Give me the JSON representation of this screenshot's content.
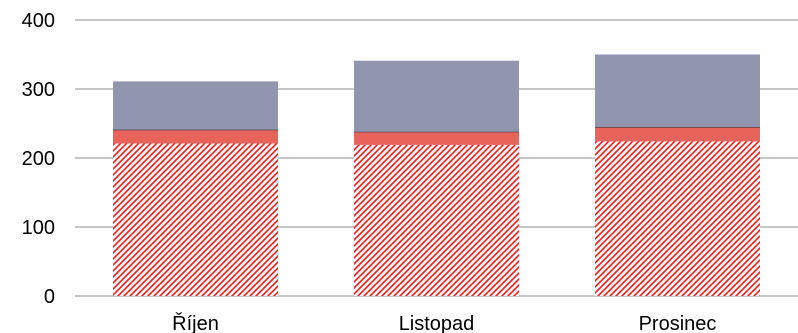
{
  "chart_data": {
    "type": "bar",
    "stacked": true,
    "categories": [
      "Říjen",
      "Listopad",
      "Prosinec"
    ],
    "series": [
      {
        "values": [
          221,
          219,
          224
        ],
        "color": "#ff0000",
        "pattern": "diagonal-hatch"
      },
      {
        "values": [
          20,
          19,
          21
        ],
        "color": "#e8635a",
        "pattern": "solid"
      },
      {
        "values": [
          70,
          103,
          105
        ],
        "color": "#9196ae",
        "pattern": "solid"
      }
    ],
    "separator_color": "#1f2d3a",
    "ylim": [
      0,
      400
    ],
    "yticks": [
      0,
      100,
      200,
      300,
      400
    ],
    "grid": true,
    "legend": "none",
    "title": "",
    "xlabel": "",
    "ylabel": ""
  }
}
